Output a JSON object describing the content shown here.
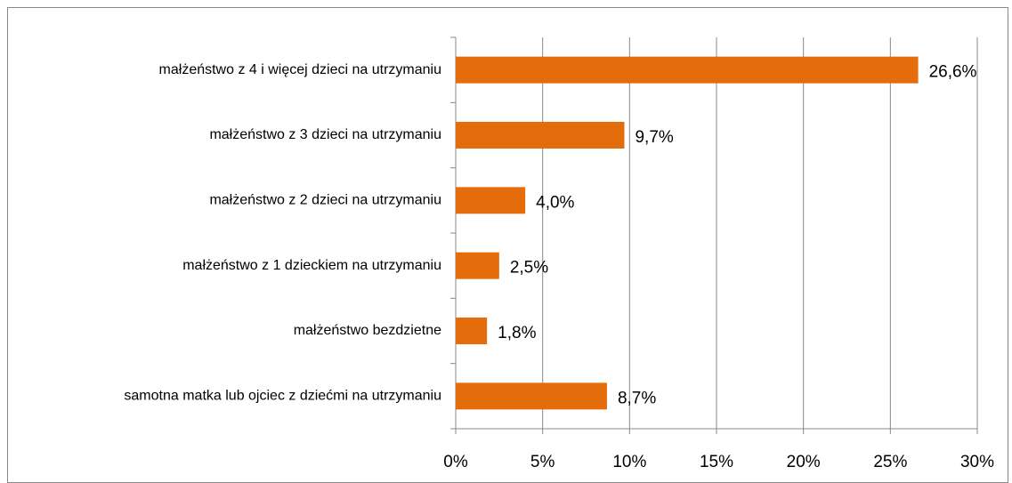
{
  "chart_data": {
    "type": "bar",
    "orientation": "horizontal",
    "categories": [
      "małżeństwo z 4 i więcej dzieci na utrzymaniu",
      "małżeństwo z 3 dzieci na utrzymaniu",
      "małżeństwo z 2 dzieci na utrzymaniu",
      "małżeństwo z 1 dzieckiem na utrzymaniu",
      "małżeństwo bezdzietne",
      "samotna matka lub ojciec z dziećmi na utrzymaniu"
    ],
    "values": [
      26.6,
      9.7,
      4.0,
      2.5,
      1.8,
      8.7
    ],
    "value_labels": [
      "26,6%",
      "9,7%",
      "4,0%",
      "2,5%",
      "1,8%",
      "8,7%"
    ],
    "color": "#e46c0a",
    "xlim": [
      0,
      30
    ],
    "xticks": [
      {
        "value": 0,
        "label": "0%"
      },
      {
        "value": 5,
        "label": "5%"
      },
      {
        "value": 10,
        "label": "10%"
      },
      {
        "value": 15,
        "label": "15%"
      },
      {
        "value": 20,
        "label": "20%"
      },
      {
        "value": 25,
        "label": "25%"
      },
      {
        "value": 30,
        "label": "30%"
      }
    ],
    "grid": true
  }
}
